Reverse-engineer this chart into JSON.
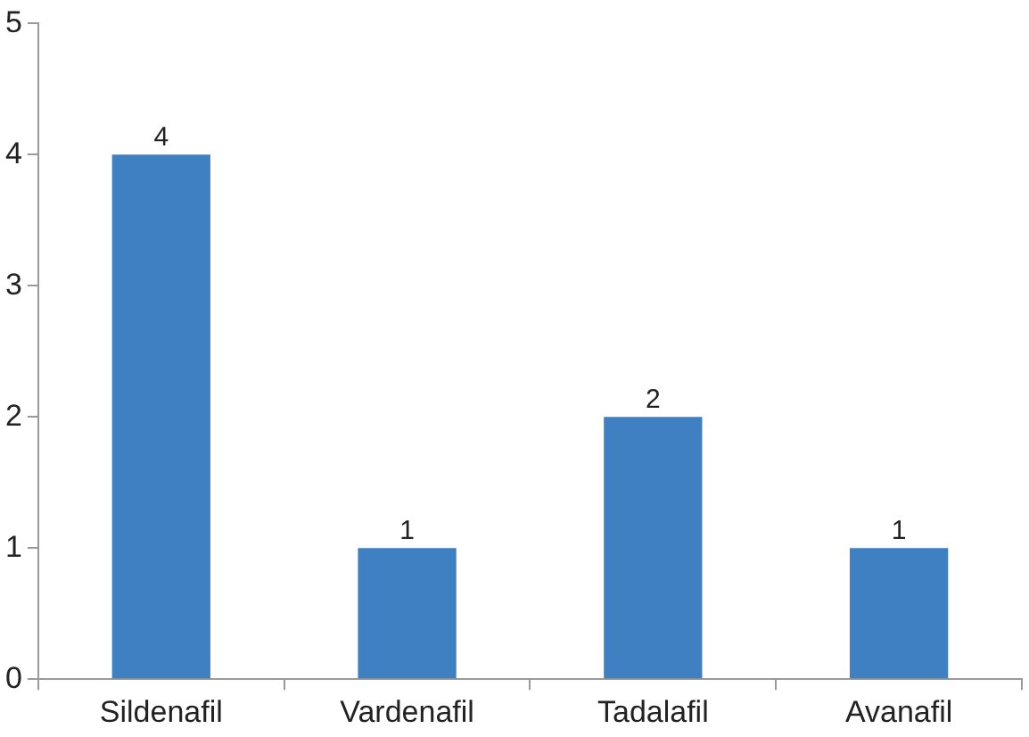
{
  "chart_data": {
    "type": "bar",
    "categories": [
      "Sildenafil",
      "Vardenafil",
      "Tadalafil",
      "Avanafil"
    ],
    "values": [
      4,
      1,
      2,
      1
    ],
    "color": "#3f80c2",
    "ylim": [
      0,
      5
    ],
    "yticks": [
      0,
      1,
      2,
      3,
      4,
      5
    ],
    "grid": false,
    "data_labels": true
  }
}
